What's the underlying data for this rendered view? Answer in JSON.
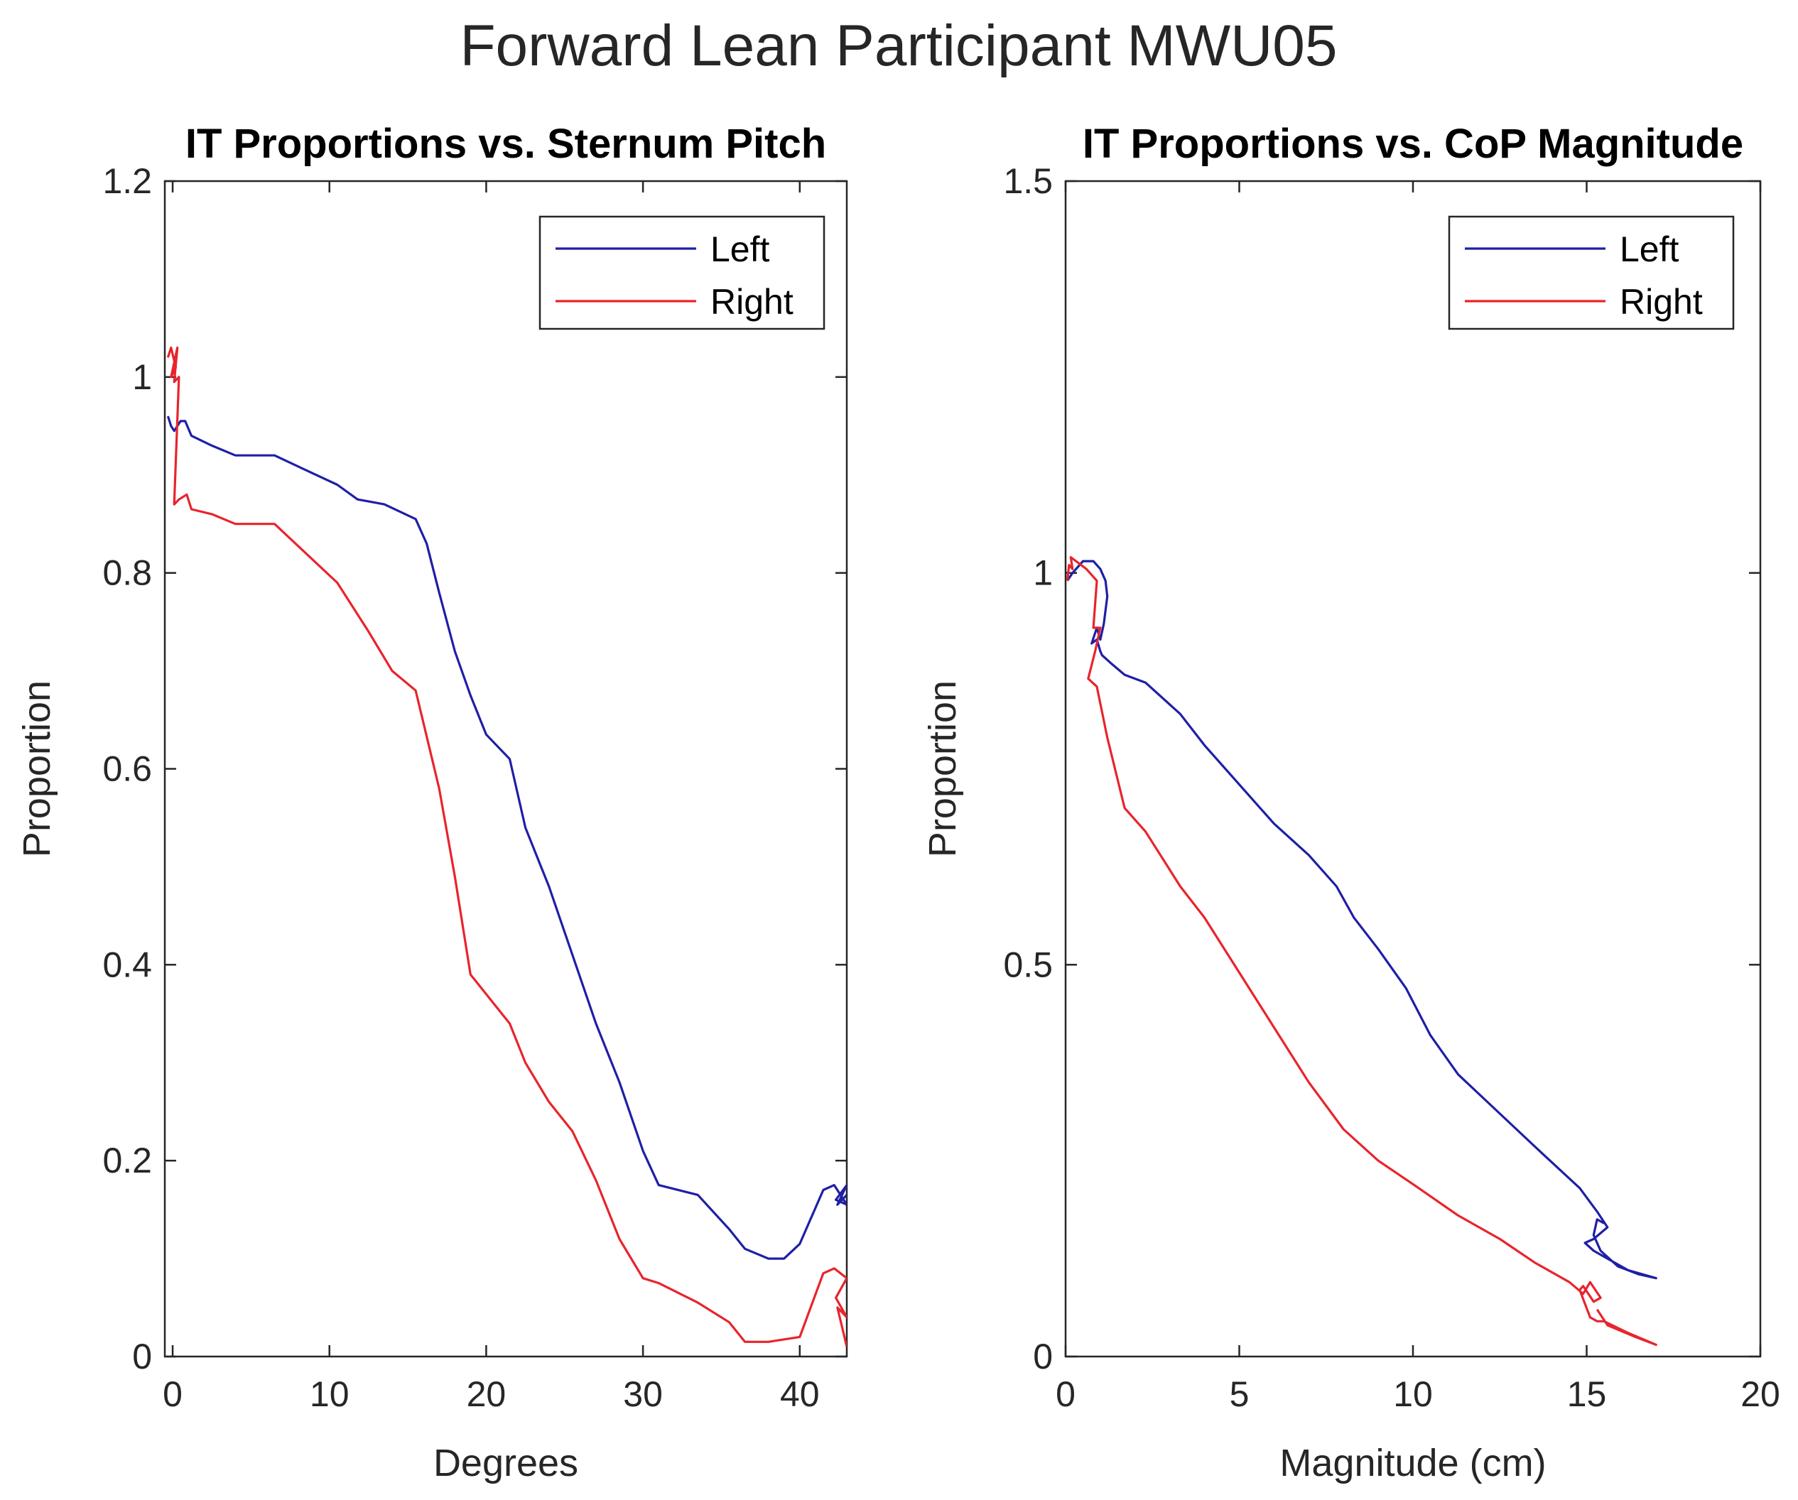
{
  "figure": {
    "title": "Forward Lean Participant MWU05"
  },
  "colors": {
    "left": "#1f1fa6",
    "right": "#e8242c",
    "axis": "#262626"
  },
  "chart_data": [
    {
      "type": "line",
      "title": "IT Proportions vs. Sternum Pitch",
      "xlabel": "Degrees",
      "ylabel": "Proportion",
      "xlim": [
        -0.5,
        43
      ],
      "ylim": [
        0,
        1.2
      ],
      "xticks": [
        0,
        10,
        20,
        30,
        40
      ],
      "yticks": [
        0,
        0.2,
        0.4,
        0.6,
        0.8,
        1,
        1.2
      ],
      "xtick_labels": [
        "0",
        "10",
        "20",
        "30",
        "40"
      ],
      "ytick_labels": [
        "0",
        "0.2",
        "0.4",
        "0.6",
        "0.8",
        "1",
        "1.2"
      ],
      "legend": {
        "position": "top-right",
        "entries": [
          "Left",
          "Right"
        ]
      },
      "series": [
        {
          "name": "Left",
          "x": [
            -0.3,
            -0.1,
            0.1,
            0.3,
            0.5,
            0.8,
            1.2,
            2.5,
            4.0,
            6.5,
            8.5,
            10.5,
            11.8,
            13.5,
            15.5,
            16.2,
            17.0,
            18.0,
            19.0,
            20.0,
            21.5,
            22.5,
            24.0,
            25.5,
            27.0,
            28.5,
            30.0,
            31.0,
            33.5,
            35.5,
            36.5,
            38.0,
            39.0,
            40.0,
            41.5,
            42.2,
            43.0,
            42.3,
            43.0,
            42.4,
            43.0
          ],
          "y": [
            0.96,
            0.95,
            0.945,
            0.95,
            0.955,
            0.955,
            0.94,
            0.93,
            0.92,
            0.92,
            0.905,
            0.89,
            0.875,
            0.87,
            0.855,
            0.83,
            0.78,
            0.72,
            0.675,
            0.635,
            0.61,
            0.54,
            0.48,
            0.41,
            0.34,
            0.28,
            0.21,
            0.175,
            0.165,
            0.13,
            0.11,
            0.1,
            0.1,
            0.115,
            0.17,
            0.175,
            0.155,
            0.16,
            0.175,
            0.155,
            0.165
          ]
        },
        {
          "name": "Right",
          "x": [
            -0.3,
            -0.1,
            0.2,
            -0.1,
            0.3,
            0.1,
            0.4,
            0.1,
            0.4,
            0.9,
            1.2,
            2.5,
            4.0,
            6.5,
            8.5,
            10.5,
            12.5,
            14.0,
            15.5,
            17.0,
            18.0,
            19.0,
            20.0,
            21.5,
            22.5,
            24.0,
            25.5,
            27.0,
            28.5,
            30.0,
            31.0,
            33.5,
            35.5,
            36.5,
            38.0,
            40.0,
            41.5,
            42.2,
            43.0,
            42.3,
            43.0,
            42.4,
            43.0
          ],
          "y": [
            1.02,
            1.03,
            1.01,
            1.0,
            1.03,
            0.995,
            1.0,
            0.87,
            0.875,
            0.88,
            0.865,
            0.86,
            0.85,
            0.85,
            0.82,
            0.79,
            0.74,
            0.7,
            0.68,
            0.58,
            0.49,
            0.39,
            0.37,
            0.34,
            0.3,
            0.26,
            0.23,
            0.18,
            0.12,
            0.08,
            0.075,
            0.055,
            0.035,
            0.015,
            0.015,
            0.02,
            0.085,
            0.09,
            0.08,
            0.06,
            0.04,
            0.05,
            0.01
          ]
        }
      ]
    },
    {
      "type": "line",
      "title": "IT Proportions vs. CoP Magnitude",
      "xlabel": "Magnitude (cm)",
      "ylabel": "Proportion",
      "xlim": [
        0,
        20
      ],
      "ylim": [
        0,
        1.5
      ],
      "xticks": [
        0,
        5,
        10,
        15,
        20
      ],
      "yticks": [
        0,
        0.5,
        1,
        1.5
      ],
      "xtick_labels": [
        "0",
        "5",
        "10",
        "15",
        "20"
      ],
      "ytick_labels": [
        "0",
        "0.5",
        "1",
        "1.5"
      ],
      "legend": {
        "position": "top-right",
        "entries": [
          "Left",
          "Right"
        ]
      },
      "series": [
        {
          "name": "Left",
          "x": [
            0.05,
            0.2,
            0.5,
            0.8,
            1.0,
            1.15,
            1.2,
            1.1,
            1.0,
            0.9,
            0.75,
            0.9,
            1.0,
            1.05,
            1.3,
            1.7,
            2.3,
            3.3,
            4.0,
            5.0,
            6.0,
            7.0,
            7.8,
            8.3,
            9.0,
            9.8,
            10.5,
            11.3,
            12.5,
            13.7,
            14.8,
            15.3,
            15.6,
            15.2,
            14.95,
            15.2,
            15.6,
            16.2,
            17.0,
            16.5,
            15.9,
            15.4,
            15.2,
            15.3,
            15.5
          ],
          "y": [
            0.99,
            1.0,
            1.015,
            1.015,
            1.005,
            0.99,
            0.97,
            0.935,
            0.915,
            0.93,
            0.91,
            0.915,
            0.9,
            0.895,
            0.885,
            0.87,
            0.86,
            0.82,
            0.78,
            0.73,
            0.68,
            0.64,
            0.6,
            0.56,
            0.52,
            0.47,
            0.41,
            0.36,
            0.31,
            0.26,
            0.215,
            0.185,
            0.165,
            0.15,
            0.145,
            0.135,
            0.125,
            0.11,
            0.1,
            0.105,
            0.115,
            0.135,
            0.155,
            0.175,
            0.17
          ]
        },
        {
          "name": "Right",
          "x": [
            0.05,
            0.1,
            0.2,
            0.15,
            0.3,
            0.6,
            0.9,
            0.8,
            1.0,
            0.85,
            0.65,
            0.9,
            1.2,
            1.7,
            2.3,
            3.3,
            4.0,
            5.0,
            6.0,
            7.0,
            8.0,
            9.0,
            10.0,
            11.3,
            12.5,
            13.5,
            14.5,
            14.9,
            15.1,
            15.4,
            15.2,
            14.9,
            14.8,
            15.1,
            15.3,
            15.5,
            16.2,
            17.0,
            16.4,
            15.6,
            15.3
          ],
          "y": [
            0.99,
            1.01,
            1.005,
            1.02,
            1.015,
            1.005,
            0.99,
            0.93,
            0.93,
            0.9,
            0.865,
            0.855,
            0.79,
            0.7,
            0.67,
            0.6,
            0.56,
            0.49,
            0.42,
            0.35,
            0.29,
            0.25,
            0.22,
            0.18,
            0.15,
            0.12,
            0.095,
            0.08,
            0.095,
            0.075,
            0.07,
            0.09,
            0.085,
            0.05,
            0.045,
            0.045,
            0.03,
            0.015,
            0.025,
            0.04,
            0.06
          ]
        }
      ]
    }
  ]
}
